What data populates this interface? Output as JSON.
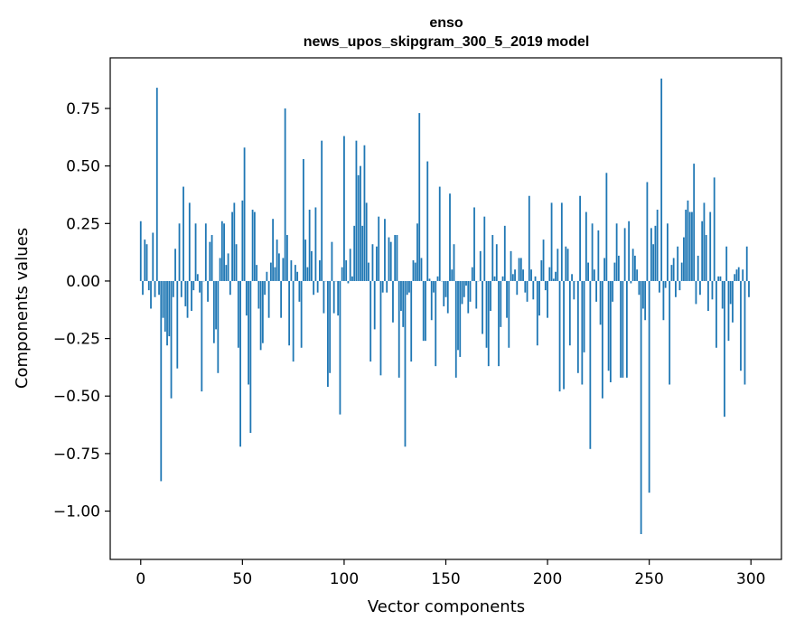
{
  "chart_data": {
    "type": "bar",
    "title": "enso",
    "subtitle": "news_upos_skipgram_300_5_2019 model",
    "xlabel": "Vector components",
    "ylabel": "Components values",
    "xlim": [
      -15,
      315
    ],
    "ylim": [
      -1.21,
      0.97
    ],
    "xticks": [
      0,
      50,
      100,
      150,
      200,
      250,
      300
    ],
    "xtick_labels": [
      "0",
      "50",
      "100",
      "150",
      "200",
      "250",
      "300"
    ],
    "yticks": [
      -1.0,
      -0.75,
      -0.5,
      -0.25,
      0.0,
      0.25,
      0.5,
      0.75
    ],
    "ytick_labels": [
      "−1.00",
      "−0.75",
      "−0.50",
      "−0.25",
      "0.00",
      "0.25",
      "0.50",
      "0.75"
    ],
    "bar_color": "#1f77b4",
    "grid": false,
    "x": [
      0,
      1,
      2,
      3,
      4,
      5,
      6,
      7,
      8,
      9,
      10,
      11,
      12,
      13,
      14,
      15,
      16,
      17,
      18,
      19,
      20,
      21,
      22,
      23,
      24,
      25,
      26,
      27,
      28,
      29,
      30,
      31,
      32,
      33,
      34,
      35,
      36,
      37,
      38,
      39,
      40,
      41,
      42,
      43,
      44,
      45,
      46,
      47,
      48,
      49,
      50,
      51,
      52,
      53,
      54,
      55,
      56,
      57,
      58,
      59,
      60,
      61,
      62,
      63,
      64,
      65,
      66,
      67,
      68,
      69,
      70,
      71,
      72,
      73,
      74,
      75,
      76,
      77,
      78,
      79,
      80,
      81,
      82,
      83,
      84,
      85,
      86,
      87,
      88,
      89,
      90,
      91,
      92,
      93,
      94,
      95,
      96,
      97,
      98,
      99,
      100,
      101,
      102,
      103,
      104,
      105,
      106,
      107,
      108,
      109,
      110,
      111,
      112,
      113,
      114,
      115,
      116,
      117,
      118,
      119,
      120,
      121,
      122,
      123,
      124,
      125,
      126,
      127,
      128,
      129,
      130,
      131,
      132,
      133,
      134,
      135,
      136,
      137,
      138,
      139,
      140,
      141,
      142,
      143,
      144,
      145,
      146,
      147,
      148,
      149,
      150,
      151,
      152,
      153,
      154,
      155,
      156,
      157,
      158,
      159,
      160,
      161,
      162,
      163,
      164,
      165,
      166,
      167,
      168,
      169,
      170,
      171,
      172,
      173,
      174,
      175,
      176,
      177,
      178,
      179,
      180,
      181,
      182,
      183,
      184,
      185,
      186,
      187,
      188,
      189,
      190,
      191,
      192,
      193,
      194,
      195,
      196,
      197,
      198,
      199,
      200,
      201,
      202,
      203,
      204,
      205,
      206,
      207,
      208,
      209,
      210,
      211,
      212,
      213,
      214,
      215,
      216,
      217,
      218,
      219,
      220,
      221,
      222,
      223,
      224,
      225,
      226,
      227,
      228,
      229,
      230,
      231,
      232,
      233,
      234,
      235,
      236,
      237,
      238,
      239,
      240,
      241,
      242,
      243,
      244,
      245,
      246,
      247,
      248,
      249,
      250,
      251,
      252,
      253,
      254,
      255,
      256,
      257,
      258,
      259,
      260,
      261,
      262,
      263,
      264,
      265,
      266,
      267,
      268,
      269,
      270,
      271,
      272,
      273,
      274,
      275,
      276,
      277,
      278,
      279,
      280,
      281,
      282,
      283,
      284,
      285,
      286,
      287,
      288,
      289,
      290,
      291,
      292,
      293,
      294,
      295,
      296,
      297,
      298,
      299
    ],
    "values": [
      0.26,
      -0.06,
      0.18,
      0.16,
      -0.04,
      -0.12,
      0.21,
      -0.07,
      0.84,
      -0.06,
      -0.87,
      -0.16,
      -0.22,
      -0.28,
      -0.24,
      -0.51,
      -0.07,
      0.14,
      -0.38,
      0.25,
      -0.07,
      0.41,
      -0.11,
      -0.16,
      0.34,
      -0.13,
      -0.04,
      0.25,
      0.03,
      -0.05,
      -0.48,
      0.0,
      0.25,
      -0.09,
      0.17,
      0.2,
      -0.27,
      -0.21,
      -0.4,
      0.1,
      0.26,
      0.25,
      0.07,
      0.12,
      -0.06,
      0.3,
      0.34,
      0.16,
      -0.29,
      -0.72,
      0.35,
      0.58,
      -0.15,
      -0.45,
      -0.66,
      0.31,
      0.3,
      0.07,
      -0.12,
      -0.3,
      -0.27,
      -0.06,
      0.04,
      -0.16,
      0.08,
      0.27,
      0.06,
      0.18,
      0.12,
      -0.16,
      0.1,
      0.75,
      0.2,
      -0.28,
      0.09,
      -0.35,
      0.07,
      0.04,
      -0.09,
      -0.29,
      0.53,
      0.18,
      0.06,
      0.31,
      0.13,
      -0.06,
      0.32,
      -0.05,
      0.09,
      0.61,
      -0.14,
      0.0,
      -0.46,
      -0.4,
      0.17,
      -0.14,
      0.0,
      -0.15,
      -0.58,
      0.06,
      0.63,
      0.09,
      -0.01,
      0.14,
      0.02,
      0.24,
      0.61,
      0.46,
      0.5,
      0.24,
      0.59,
      0.34,
      0.08,
      -0.35,
      0.16,
      -0.21,
      0.15,
      0.28,
      -0.41,
      -0.05,
      0.27,
      -0.05,
      0.19,
      0.17,
      -0.18,
      0.2,
      0.2,
      -0.42,
      -0.13,
      -0.2,
      -0.72,
      -0.06,
      -0.05,
      -0.35,
      0.09,
      0.08,
      0.25,
      0.73,
      0.1,
      -0.26,
      -0.26,
      0.52,
      0.01,
      -0.17,
      -0.05,
      -0.37,
      0.02,
      0.41,
      0.0,
      -0.11,
      -0.07,
      -0.14,
      0.38,
      0.05,
      0.16,
      -0.42,
      -0.3,
      -0.33,
      -0.1,
      -0.07,
      -0.02,
      -0.14,
      -0.09,
      0.06,
      0.32,
      -0.12,
      0.0,
      0.13,
      -0.23,
      0.28,
      -0.29,
      -0.37,
      -0.13,
      0.2,
      0.02,
      0.16,
      -0.37,
      -0.2,
      0.02,
      0.24,
      -0.16,
      -0.29,
      0.13,
      0.03,
      0.05,
      -0.06,
      0.1,
      0.1,
      0.05,
      -0.05,
      -0.09,
      0.37,
      0.05,
      -0.08,
      0.02,
      -0.28,
      -0.15,
      0.09,
      0.18,
      -0.04,
      -0.16,
      0.06,
      0.34,
      0.01,
      0.04,
      0.14,
      -0.48,
      0.34,
      -0.47,
      0.15,
      0.14,
      -0.28,
      0.03,
      -0.08,
      0.0,
      -0.4,
      0.37,
      -0.45,
      -0.31,
      0.3,
      0.08,
      -0.73,
      0.25,
      0.05,
      -0.09,
      0.22,
      -0.19,
      -0.51,
      0.1,
      0.47,
      -0.39,
      -0.44,
      -0.09,
      0.08,
      0.25,
      0.11,
      -0.42,
      -0.42,
      0.23,
      -0.42,
      0.26,
      -0.01,
      0.14,
      0.11,
      0.05,
      -0.06,
      -1.1,
      -0.12,
      -0.17,
      0.43,
      -0.92,
      0.23,
      0.16,
      0.24,
      0.31,
      -0.05,
      0.88,
      -0.17,
      -0.03,
      0.25,
      -0.45,
      0.07,
      0.1,
      -0.07,
      0.15,
      -0.04,
      0.08,
      0.19,
      0.31,
      0.35,
      0.3,
      0.3,
      0.51,
      -0.1,
      0.11,
      -0.06,
      0.26,
      0.34,
      0.2,
      -0.13,
      0.3,
      -0.08,
      0.45,
      -0.29,
      0.02,
      0.02,
      -0.12,
      -0.59,
      0.15,
      -0.26,
      -0.1,
      -0.18,
      0.03,
      0.05,
      0.06,
      -0.39,
      0.05,
      -0.45,
      0.15,
      -0.07
    ]
  }
}
